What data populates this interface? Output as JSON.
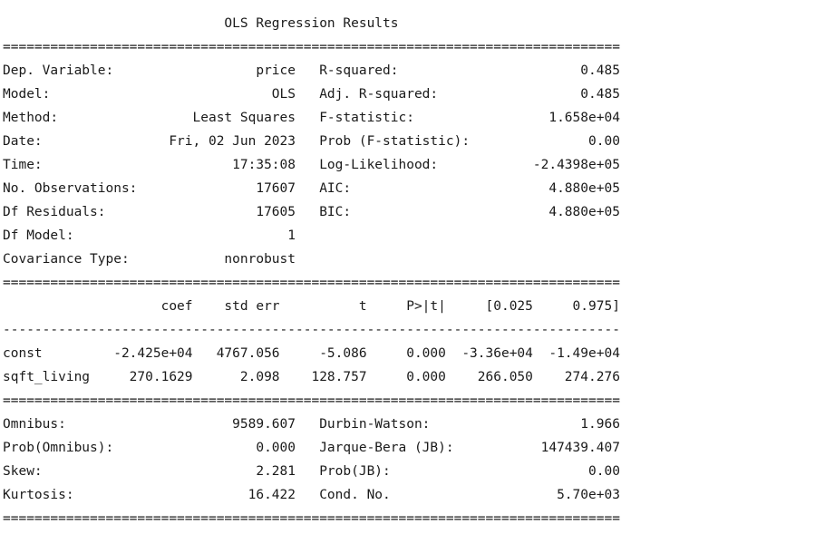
{
  "title": "OLS Regression Results",
  "separator_eq": "==============================================================================",
  "separator_dash": "------------------------------------------------------------------------------",
  "summary": {
    "left": [
      {
        "label": "Dep. Variable:",
        "value": "price"
      },
      {
        "label": "Model:",
        "value": "OLS"
      },
      {
        "label": "Method:",
        "value": "Least Squares"
      },
      {
        "label": "Date:",
        "value": "Fri, 02 Jun 2023"
      },
      {
        "label": "Time:",
        "value": "17:35:08"
      },
      {
        "label": "No. Observations:",
        "value": "17607"
      },
      {
        "label": "Df Residuals:",
        "value": "17605"
      },
      {
        "label": "Df Model:",
        "value": "1"
      },
      {
        "label": "Covariance Type:",
        "value": "nonrobust"
      }
    ],
    "right": [
      {
        "label": "R-squared:",
        "value": "0.485"
      },
      {
        "label": "Adj. R-squared:",
        "value": "0.485"
      },
      {
        "label": "F-statistic:",
        "value": "1.658e+04"
      },
      {
        "label": "Prob (F-statistic):",
        "value": "0.00"
      },
      {
        "label": "Log-Likelihood:",
        "value": "-2.4398e+05"
      },
      {
        "label": "AIC:",
        "value": "4.880e+05"
      },
      {
        "label": "BIC:",
        "value": "4.880e+05"
      }
    ]
  },
  "coefficients": {
    "headers": [
      "coef",
      "std err",
      "t",
      "P>|t|",
      "[0.025",
      "0.975]"
    ],
    "rows": [
      {
        "name": "const",
        "values": [
          "-2.425e+04",
          "4767.056",
          "-5.086",
          "0.000",
          "-3.36e+04",
          "-1.49e+04"
        ]
      },
      {
        "name": "sqft_living",
        "values": [
          "270.1629",
          "2.098",
          "128.757",
          "0.000",
          "266.050",
          "274.276"
        ]
      }
    ]
  },
  "diagnostics": {
    "left": [
      {
        "label": "Omnibus:",
        "value": "9589.607"
      },
      {
        "label": "Prob(Omnibus):",
        "value": "0.000"
      },
      {
        "label": "Skew:",
        "value": "2.281"
      },
      {
        "label": "Kurtosis:",
        "value": "16.422"
      }
    ],
    "right": [
      {
        "label": "Durbin-Watson:",
        "value": "1.966"
      },
      {
        "label": "Jarque-Bera (JB):",
        "value": "147439.407"
      },
      {
        "label": "Prob(JB):",
        "value": "0.00"
      },
      {
        "label": "Cond. No.",
        "value": "5.70e+03"
      }
    ]
  }
}
